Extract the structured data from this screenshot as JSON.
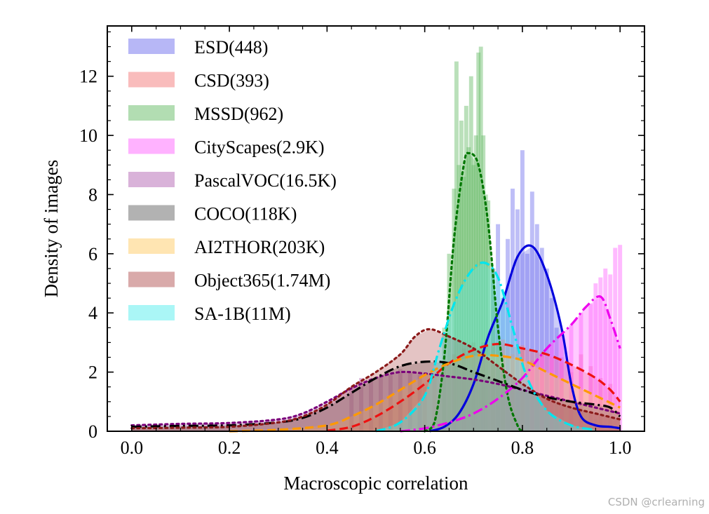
{
  "watermark": "CSDN @crlearning",
  "chart_data": {
    "type": "histogram+kde",
    "title": "",
    "xlabel": "Macroscopic correlation",
    "ylabel": "Density of images",
    "xlim": [
      -0.05,
      1.05
    ],
    "ylim": [
      0,
      13.7
    ],
    "xticks": [
      0.0,
      0.2,
      0.4,
      0.6,
      0.8,
      1.0
    ],
    "xtick_labels": [
      "0.0",
      "0.2",
      "0.4",
      "0.6",
      "0.8",
      "1.0"
    ],
    "yticks": [
      0,
      2,
      4,
      6,
      8,
      10,
      12
    ],
    "ytick_labels": [
      "0",
      "2",
      "4",
      "6",
      "8",
      "10",
      "12"
    ],
    "legend_position": "upper-left",
    "series": [
      {
        "name": "ESD(448)",
        "fill": "#6f6fee",
        "line": "#0000dd",
        "dash": "solid",
        "kde": [
          [
            0.61,
            0
          ],
          [
            0.64,
            0.15
          ],
          [
            0.67,
            0.6
          ],
          [
            0.7,
            1.6
          ],
          [
            0.73,
            3.2
          ],
          [
            0.76,
            4.4
          ],
          [
            0.79,
            5.9
          ],
          [
            0.82,
            6.25
          ],
          [
            0.85,
            5.3
          ],
          [
            0.88,
            3.5
          ],
          [
            0.9,
            1.6
          ],
          [
            0.92,
            0.5
          ],
          [
            0.95,
            0.2
          ],
          [
            0.98,
            0.15
          ],
          [
            1.0,
            0.1
          ]
        ],
        "hist": [
          [
            0.66,
            0.7
          ],
          [
            0.68,
            1.2
          ],
          [
            0.7,
            1.6
          ],
          [
            0.72,
            3.0
          ],
          [
            0.74,
            5.5
          ],
          [
            0.75,
            7.0
          ],
          [
            0.76,
            4.5
          ],
          [
            0.77,
            6.5
          ],
          [
            0.78,
            8.2
          ],
          [
            0.79,
            7.5
          ],
          [
            0.8,
            9.5
          ],
          [
            0.81,
            6.0
          ],
          [
            0.82,
            8.1
          ],
          [
            0.83,
            7.0
          ],
          [
            0.84,
            6.2
          ],
          [
            0.85,
            5.5
          ],
          [
            0.86,
            4.5
          ],
          [
            0.87,
            3.5
          ],
          [
            0.88,
            2.5
          ],
          [
            0.9,
            1.5
          ],
          [
            0.92,
            0.8
          ],
          [
            0.95,
            0.4
          ]
        ]
      },
      {
        "name": "CSD(393)",
        "fill": "#f47a7a",
        "line": "#ee1111",
        "dash": "dashed",
        "kde": [
          [
            0.4,
            0.02
          ],
          [
            0.45,
            0.15
          ],
          [
            0.5,
            0.5
          ],
          [
            0.55,
            1.0
          ],
          [
            0.6,
            1.6
          ],
          [
            0.65,
            2.3
          ],
          [
            0.7,
            2.75
          ],
          [
            0.75,
            2.95
          ],
          [
            0.8,
            2.8
          ],
          [
            0.85,
            2.6
          ],
          [
            0.9,
            2.25
          ],
          [
            0.95,
            1.8
          ],
          [
            0.98,
            1.4
          ],
          [
            1.0,
            1.0
          ]
        ],
        "hist": [
          [
            0.6,
            1.5
          ],
          [
            0.62,
            1.9
          ],
          [
            0.64,
            2.2
          ],
          [
            0.66,
            2.6
          ],
          [
            0.68,
            2.8
          ],
          [
            0.7,
            3.0
          ],
          [
            0.72,
            2.7
          ],
          [
            0.74,
            2.9
          ],
          [
            0.76,
            3.1
          ],
          [
            0.78,
            2.6
          ],
          [
            0.8,
            2.9
          ],
          [
            0.82,
            2.4
          ],
          [
            0.84,
            2.6
          ],
          [
            0.86,
            2.5
          ],
          [
            0.88,
            2.3
          ],
          [
            0.9,
            2.0
          ],
          [
            0.92,
            2.6
          ],
          [
            0.94,
            2.2
          ],
          [
            0.96,
            1.8
          ],
          [
            0.98,
            1.6
          ]
        ]
      },
      {
        "name": "MSSD(962)",
        "fill": "#66bb66",
        "line": "#007700",
        "dash": "dotted",
        "kde": [
          [
            0.6,
            0
          ],
          [
            0.62,
            0.3
          ],
          [
            0.64,
            2.5
          ],
          [
            0.66,
            6.5
          ],
          [
            0.68,
            9.0
          ],
          [
            0.69,
            9.4
          ],
          [
            0.71,
            9.0
          ],
          [
            0.73,
            7.0
          ],
          [
            0.75,
            3.5
          ],
          [
            0.77,
            1.2
          ],
          [
            0.79,
            0.2
          ],
          [
            0.8,
            0
          ]
        ],
        "hist": [
          [
            0.64,
            3.5
          ],
          [
            0.65,
            6.0
          ],
          [
            0.66,
            8.2
          ],
          [
            0.665,
            12.5
          ],
          [
            0.67,
            9.0
          ],
          [
            0.675,
            10.5
          ],
          [
            0.68,
            8.6
          ],
          [
            0.685,
            11.0
          ],
          [
            0.69,
            9.6
          ],
          [
            0.695,
            12.0
          ],
          [
            0.7,
            9.0
          ],
          [
            0.705,
            10.0
          ],
          [
            0.71,
            12.8
          ],
          [
            0.715,
            13.0
          ],
          [
            0.72,
            10.0
          ],
          [
            0.725,
            8.0
          ],
          [
            0.73,
            7.8
          ],
          [
            0.74,
            5.5
          ],
          [
            0.75,
            3.0
          ],
          [
            0.76,
            1.5
          ]
        ]
      },
      {
        "name": "CityScapes(2.9K)",
        "fill": "#ff66ff",
        "line": "#ee00ee",
        "dash": "dashdot",
        "kde": [
          [
            0.55,
            0
          ],
          [
            0.6,
            0.1
          ],
          [
            0.65,
            0.3
          ],
          [
            0.7,
            0.6
          ],
          [
            0.75,
            1.1
          ],
          [
            0.8,
            1.8
          ],
          [
            0.85,
            2.8
          ],
          [
            0.9,
            3.6
          ],
          [
            0.93,
            4.2
          ],
          [
            0.96,
            4.55
          ],
          [
            0.98,
            3.8
          ],
          [
            1.0,
            2.8
          ]
        ],
        "hist": [
          [
            0.82,
            2.2
          ],
          [
            0.84,
            2.5
          ],
          [
            0.86,
            3.0
          ],
          [
            0.88,
            3.2
          ],
          [
            0.9,
            3.6
          ],
          [
            0.92,
            4.0
          ],
          [
            0.94,
            4.3
          ],
          [
            0.95,
            5.0
          ],
          [
            0.96,
            5.2
          ],
          [
            0.97,
            5.5
          ],
          [
            0.98,
            5.3
          ],
          [
            0.99,
            6.2
          ],
          [
            1.0,
            6.3
          ]
        ]
      },
      {
        "name": "PascalVOC(16.5K)",
        "fill": "#b366b3",
        "line": "#7a007a",
        "dash": "dotted",
        "kde": [
          [
            0.0,
            0.2
          ],
          [
            0.1,
            0.25
          ],
          [
            0.2,
            0.28
          ],
          [
            0.3,
            0.4
          ],
          [
            0.35,
            0.6
          ],
          [
            0.4,
            1.0
          ],
          [
            0.45,
            1.45
          ],
          [
            0.5,
            1.8
          ],
          [
            0.55,
            2.0
          ],
          [
            0.6,
            1.95
          ],
          [
            0.65,
            1.85
          ],
          [
            0.7,
            1.75
          ],
          [
            0.75,
            1.6
          ],
          [
            0.8,
            1.4
          ],
          [
            0.85,
            1.2
          ],
          [
            0.9,
            1.0
          ],
          [
            0.95,
            0.8
          ],
          [
            1.0,
            0.6
          ]
        ],
        "hist": [
          [
            0.45,
            1.5
          ],
          [
            0.47,
            1.8
          ],
          [
            0.49,
            1.7
          ],
          [
            0.51,
            1.8
          ],
          [
            0.53,
            1.9
          ],
          [
            0.55,
            2.1
          ],
          [
            0.57,
            2.0
          ],
          [
            0.59,
            1.9
          ]
        ]
      },
      {
        "name": "COCO(118K)",
        "fill": "#666666",
        "line": "#000000",
        "dash": "dashdot",
        "kde": [
          [
            0.0,
            0.15
          ],
          [
            0.1,
            0.18
          ],
          [
            0.2,
            0.2
          ],
          [
            0.3,
            0.3
          ],
          [
            0.35,
            0.45
          ],
          [
            0.4,
            0.8
          ],
          [
            0.45,
            1.3
          ],
          [
            0.5,
            1.8
          ],
          [
            0.55,
            2.2
          ],
          [
            0.6,
            2.35
          ],
          [
            0.65,
            2.3
          ],
          [
            0.7,
            2.0
          ],
          [
            0.75,
            1.7
          ],
          [
            0.8,
            1.4
          ],
          [
            0.85,
            1.15
          ],
          [
            0.9,
            1.0
          ],
          [
            0.95,
            0.9
          ],
          [
            0.98,
            0.8
          ],
          [
            1.0,
            0.5
          ]
        ],
        "hist": []
      },
      {
        "name": "AI2THOR(203K)",
        "fill": "#ffcc66",
        "line": "#ff9900",
        "dash": "dashed",
        "kde": [
          [
            0.2,
            0
          ],
          [
            0.3,
            0.05
          ],
          [
            0.4,
            0.2
          ],
          [
            0.45,
            0.5
          ],
          [
            0.5,
            0.9
          ],
          [
            0.55,
            1.4
          ],
          [
            0.6,
            1.9
          ],
          [
            0.65,
            2.3
          ],
          [
            0.7,
            2.55
          ],
          [
            0.75,
            2.55
          ],
          [
            0.8,
            2.4
          ],
          [
            0.85,
            2.0
          ],
          [
            0.9,
            1.6
          ],
          [
            0.95,
            1.2
          ],
          [
            1.0,
            0.8
          ]
        ],
        "hist": []
      },
      {
        "name": "Object365(1.74M)",
        "fill": "#b35555",
        "line": "#8b1a1a",
        "dash": "dotted",
        "kde": [
          [
            0.0,
            0.1
          ],
          [
            0.1,
            0.12
          ],
          [
            0.2,
            0.15
          ],
          [
            0.3,
            0.3
          ],
          [
            0.35,
            0.5
          ],
          [
            0.4,
            0.9
          ],
          [
            0.45,
            1.5
          ],
          [
            0.5,
            2.0
          ],
          [
            0.55,
            2.6
          ],
          [
            0.58,
            3.2
          ],
          [
            0.61,
            3.45
          ],
          [
            0.65,
            3.2
          ],
          [
            0.7,
            2.8
          ],
          [
            0.75,
            2.2
          ],
          [
            0.8,
            1.6
          ],
          [
            0.85,
            1.1
          ],
          [
            0.9,
            0.8
          ],
          [
            0.95,
            0.6
          ],
          [
            1.0,
            0.4
          ]
        ],
        "hist": []
      },
      {
        "name": "SA-1B(11M)",
        "fill": "#55eeee",
        "line": "#00e5ee",
        "dash": "dashdot",
        "kde": [
          [
            0.5,
            0
          ],
          [
            0.55,
            0.3
          ],
          [
            0.6,
            1.2
          ],
          [
            0.63,
            2.8
          ],
          [
            0.66,
            4.3
          ],
          [
            0.69,
            5.3
          ],
          [
            0.72,
            5.7
          ],
          [
            0.75,
            5.2
          ],
          [
            0.78,
            3.5
          ],
          [
            0.81,
            1.8
          ],
          [
            0.85,
            0.7
          ],
          [
            0.9,
            0.2
          ],
          [
            0.95,
            0.05
          ]
        ],
        "hist": []
      }
    ]
  }
}
